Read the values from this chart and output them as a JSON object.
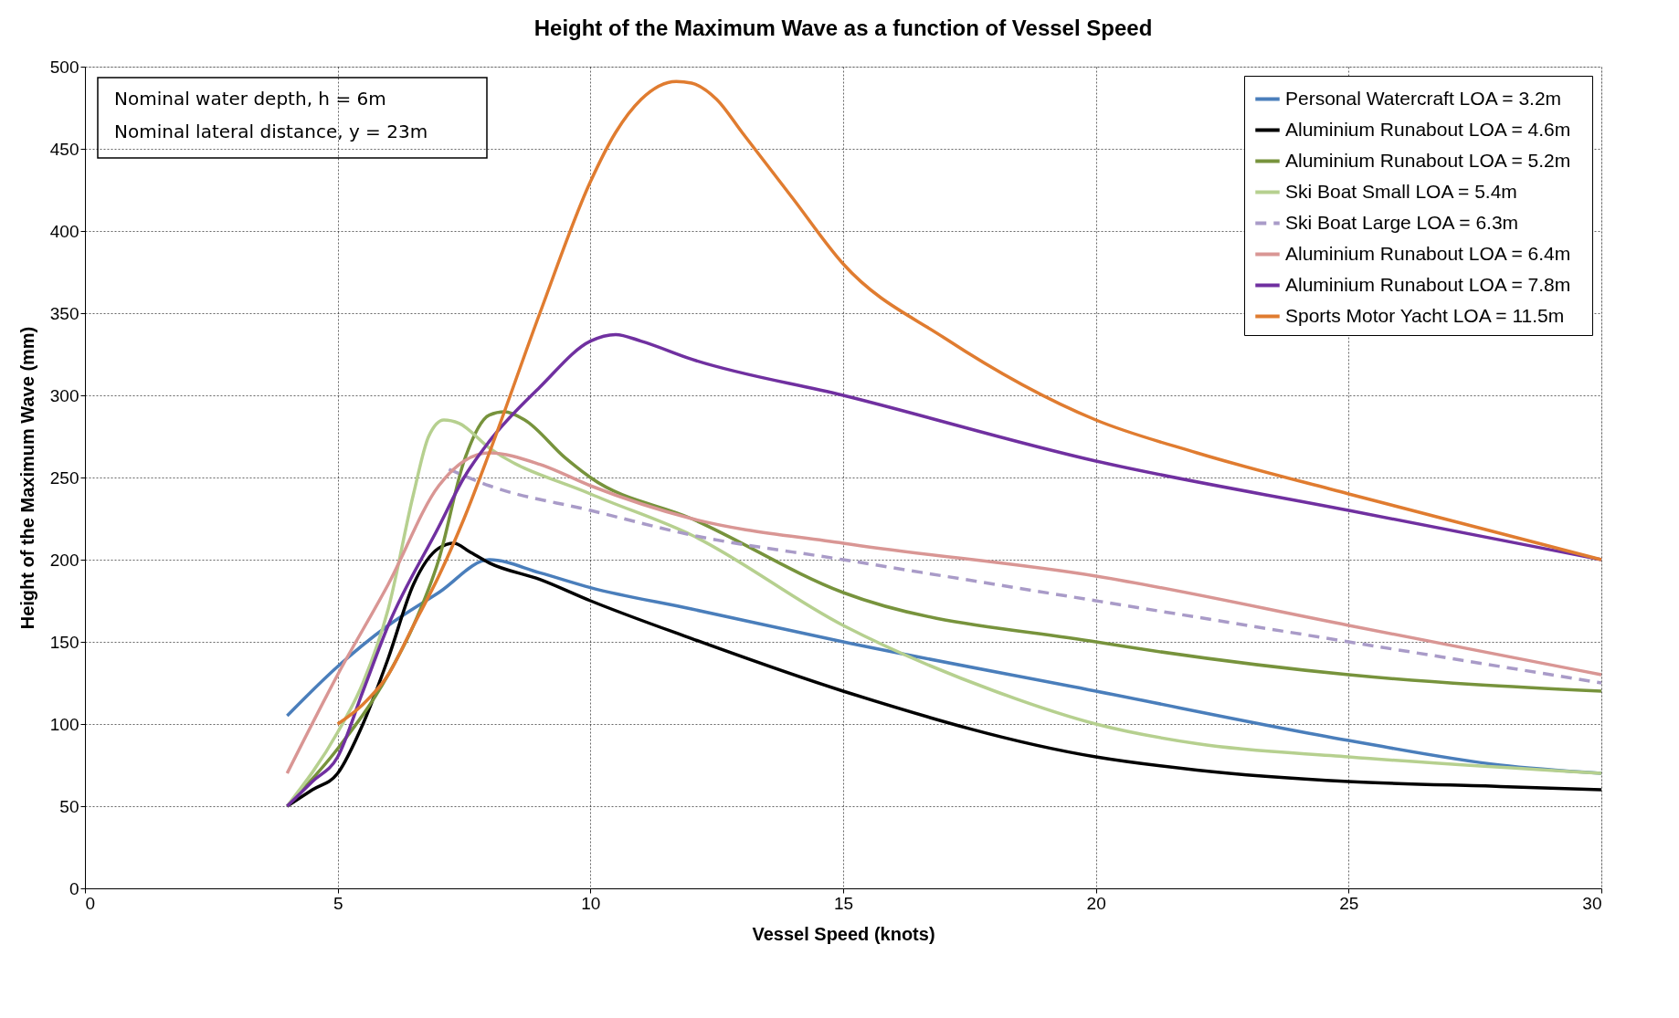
{
  "chart_data": {
    "type": "line",
    "title": "Height of the Maximum Wave as a function of Vessel Speed",
    "xlabel": "Vessel Speed (knots)",
    "ylabel": "Height of the Maximum Wave  (mm)",
    "annotations": [
      "Nominal water depth, h = 6m",
      "Nominal lateral distance, y = 23m"
    ],
    "xlim": [
      0,
      30
    ],
    "xticks": [
      0,
      5,
      10,
      15,
      20,
      25,
      30
    ],
    "ylim": [
      0,
      500
    ],
    "yticks": [
      0,
      50,
      100,
      150,
      200,
      250,
      300,
      350,
      400,
      450,
      500
    ],
    "grid": true,
    "legend": "top right",
    "marker": "none",
    "series": [
      {
        "name": "Personal Watercraft   LOA = 3.2m",
        "color": "#4a7ebb",
        "x": [
          4,
          5,
          6,
          7,
          8,
          9,
          10,
          12,
          15,
          20,
          25,
          28,
          30
        ],
        "values": [
          105,
          135,
          160,
          180,
          200,
          192,
          183,
          170,
          150,
          120,
          90,
          75,
          70
        ]
      },
      {
        "name": "Aluminium Runabout   LOA = 4.6m",
        "color": "#000000",
        "x": [
          4,
          4.5,
          5,
          5.5,
          6,
          6.5,
          7,
          7.3,
          7.6,
          8,
          9,
          10,
          12,
          15,
          20,
          22,
          25,
          28,
          30
        ],
        "values": [
          50,
          60,
          70,
          100,
          140,
          185,
          207,
          210,
          205,
          198,
          188,
          175,
          152,
          120,
          80,
          72,
          65,
          62,
          60
        ]
      },
      {
        "name": "Aluminium Runabout   LOA = 5.2m",
        "color": "#77933c",
        "x": [
          4,
          5,
          6,
          6.5,
          7,
          7.5,
          8,
          8.3,
          8.7,
          9.5,
          10,
          12,
          15,
          20,
          25,
          30
        ],
        "values": [
          50,
          85,
          130,
          160,
          200,
          260,
          288,
          290,
          285,
          262,
          250,
          225,
          180,
          150,
          130,
          120
        ]
      },
      {
        "name": "Ski Boat Small   LOA = 5.4m",
        "color": "#b6d08f",
        "x": [
          4,
          5,
          5.5,
          6,
          6.5,
          6.8,
          7.1,
          7.4,
          8,
          10,
          12,
          15,
          18,
          20,
          22,
          25,
          30
        ],
        "values": [
          50,
          95,
          125,
          170,
          240,
          275,
          285,
          283,
          268,
          240,
          215,
          160,
          120,
          100,
          88,
          80,
          70
        ]
      },
      {
        "name": "Ski Boat Large   LOA = 6.3m",
        "color": "#a99bc8",
        "line_style": "dashed",
        "x": [
          7.2,
          8,
          10,
          12,
          15,
          20,
          25,
          30
        ],
        "values": [
          255,
          245,
          230,
          215,
          200,
          175,
          150,
          125
        ]
      },
      {
        "name": "Aluminium Runabout   LOA = 6.4m",
        "color": "#d99694",
        "x": [
          4,
          5,
          6,
          7,
          7.5,
          8,
          9,
          10,
          12,
          15,
          20,
          25,
          30
        ],
        "values": [
          70,
          130,
          185,
          245,
          260,
          265,
          258,
          245,
          225,
          210,
          190,
          160,
          130
        ]
      },
      {
        "name": "Aluminium Runabout   LOA = 7.8m",
        "color": "#7030a0",
        "x": [
          4,
          4.5,
          5,
          5.5,
          6,
          7,
          7.5,
          8,
          9,
          10,
          10.5,
          11,
          12,
          15,
          20,
          25,
          30
        ],
        "values": [
          50,
          65,
          80,
          120,
          160,
          220,
          250,
          272,
          305,
          333,
          337,
          333,
          322,
          300,
          260,
          230,
          200
        ]
      },
      {
        "name": "Sports Motor Yacht   LOA = 11.5m",
        "color": "#e07c30",
        "x": [
          5,
          5.5,
          6,
          6.5,
          7,
          7.5,
          8,
          9,
          10,
          10.5,
          11,
          11.7,
          12,
          12.5,
          13,
          14,
          15,
          17,
          20,
          22,
          25,
          30
        ],
        "values": [
          100,
          112,
          130,
          160,
          190,
          225,
          265,
          350,
          430,
          460,
          480,
          491,
          490,
          480,
          460,
          420,
          380,
          335,
          285,
          265,
          240,
          200
        ]
      }
    ]
  }
}
